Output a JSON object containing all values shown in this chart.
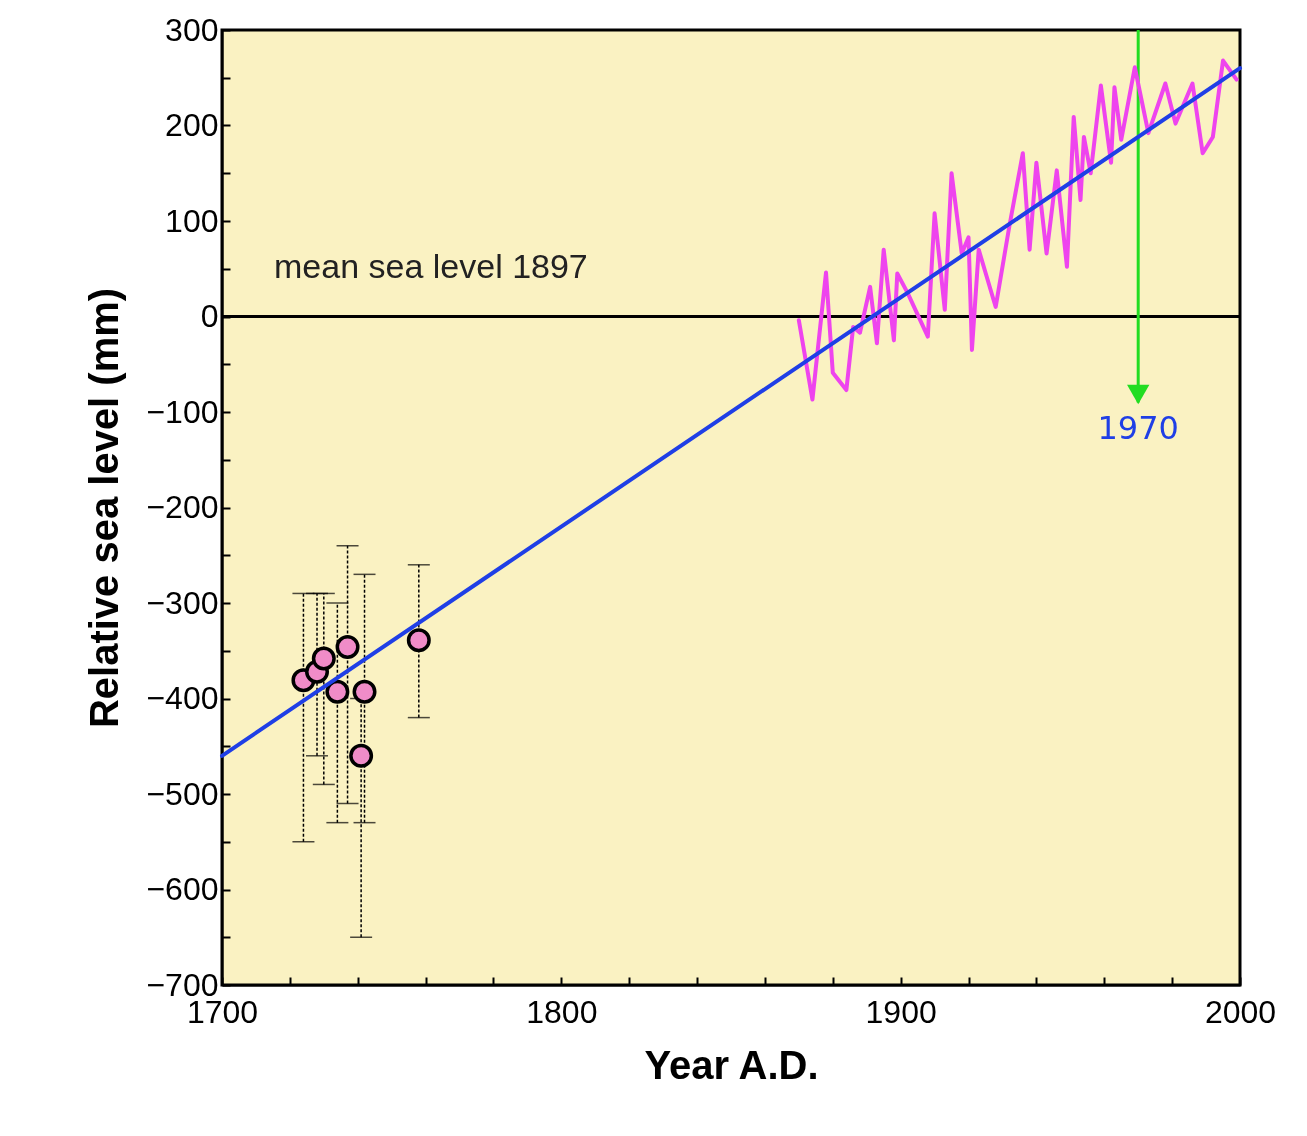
{
  "chart_data": {
    "type": "scatter",
    "xlabel": "Year A.D.",
    "ylabel": "Relative sea level  (mm)",
    "xlim": [
      1700,
      2000
    ],
    "ylim": [
      -700,
      300
    ],
    "xticks": [
      1700,
      {
        "value": 1720,
        "label": null
      },
      {
        "value": 1740,
        "label": null
      },
      {
        "value": 1760,
        "label": null
      },
      {
        "value": 1780,
        "label": null
      },
      1800,
      {
        "value": 1820,
        "label": null
      },
      {
        "value": 1840,
        "label": null
      },
      {
        "value": 1860,
        "label": null
      },
      {
        "value": 1880,
        "label": null
      },
      1900,
      {
        "value": 1920,
        "label": null
      },
      {
        "value": 1940,
        "label": null
      },
      {
        "value": 1960,
        "label": null
      },
      {
        "value": 1980,
        "label": null
      },
      2000
    ],
    "yticks": [
      -700,
      {
        "value": -650,
        "label": null
      },
      -600,
      {
        "value": -550,
        "label": null
      },
      -500,
      {
        "value": -450,
        "label": null
      },
      -400,
      {
        "value": -350,
        "label": null
      },
      -300,
      {
        "value": -250,
        "label": null
      },
      -200,
      {
        "value": -150,
        "label": null
      },
      -100,
      {
        "value": -50,
        "label": null
      },
      0,
      {
        "value": 50,
        "label": null
      },
      100,
      {
        "value": 150,
        "label": null
      },
      200,
      {
        "value": 250,
        "label": null
      },
      300
    ],
    "series": [
      {
        "marker": "circle",
        "color": "#f08cc8",
        "x": [
          1724,
          1728,
          1730,
          1737,
          1734,
          1742,
          1741,
          1758
        ],
        "values": [
          -381,
          -372,
          -358,
          -346,
          -393,
          -393,
          -460,
          -339
        ],
        "errors": [
          [
            -550,
            -290
          ],
          [
            -460,
            -290
          ],
          [
            -490,
            -290
          ],
          [
            -510,
            -240
          ],
          [
            -530,
            -300
          ],
          [
            -530,
            -270
          ],
          [
            -650,
            -400
          ],
          [
            -420,
            -260
          ]
        ]
      },
      {
        "type": "line",
        "color": "#ee44ee",
        "x": [
          1870,
          1874,
          1878,
          1880,
          1884,
          1886,
          1888,
          1891,
          1893,
          1895,
          1898,
          1899,
          1902,
          1908,
          1910,
          1913,
          1915,
          1918,
          1920,
          1921,
          1923,
          1928,
          1932,
          1936,
          1938,
          1940,
          1943,
          1946,
          1949,
          1951,
          1953,
          1954,
          1956,
          1959,
          1962,
          1963,
          1965,
          1969,
          1973,
          1978,
          1981,
          1986,
          1989,
          1992,
          1995,
          1999
        ],
        "values": [
          -4,
          -87,
          46,
          -59,
          -77,
          -11,
          -17,
          31,
          -28,
          70,
          -25,
          45,
          25,
          -21,
          108,
          7,
          150,
          66,
          83,
          -35,
          70,
          10,
          94,
          171,
          70,
          161,
          66,
          153,
          52,
          209,
          122,
          188,
          150,
          242,
          161,
          240,
          185,
          261,
          192,
          244,
          202,
          244,
          171,
          188,
          268,
          248
        ]
      },
      {
        "type": "line",
        "color": "#1f3fe6",
        "x": [
          1700,
          2000
        ],
        "values": [
          -460,
          260
        ]
      }
    ],
    "ref_lines": [
      {
        "axis": "y",
        "value": 0,
        "label": "mean sea level 1897",
        "color": "#000000"
      },
      {
        "axis": "x",
        "value": 1970,
        "label": "1970",
        "color": "#22dd22"
      }
    ]
  }
}
